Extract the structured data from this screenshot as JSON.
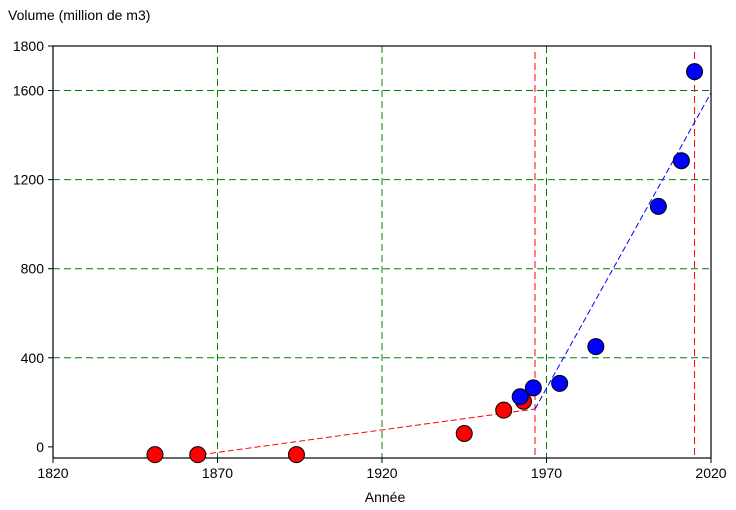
{
  "chart_data": {
    "type": "scatter",
    "title": "",
    "ylabel": "Volume (million de m3)",
    "xlabel": "Année",
    "xlim": [
      1820,
      2020
    ],
    "ylim": [
      -50,
      1800
    ],
    "x_ticks": [
      1820,
      1870,
      1920,
      1970,
      2020
    ],
    "y_ticks": [
      0,
      400,
      800,
      1200,
      1600,
      1800
    ],
    "grid_x": [
      1870,
      1920,
      1970
    ],
    "grid_y": [
      400,
      800,
      1200,
      1600
    ],
    "vlines": [
      {
        "x": 1966.5,
        "color": "#ff0000"
      },
      {
        "x": 2015,
        "color": "#ff0000"
      }
    ],
    "series": [
      {
        "color": "#ff0000",
        "points": [
          {
            "x": 1851,
            "y": -35
          },
          {
            "x": 1864,
            "y": -35
          },
          {
            "x": 1894,
            "y": -35
          },
          {
            "x": 1945,
            "y": 60
          },
          {
            "x": 1957,
            "y": 165
          },
          {
            "x": 1963,
            "y": 205
          }
        ]
      },
      {
        "color": "#0000ff",
        "points": [
          {
            "x": 1962,
            "y": 225
          },
          {
            "x": 1966,
            "y": 265
          },
          {
            "x": 1974,
            "y": 285
          },
          {
            "x": 1985,
            "y": 450
          },
          {
            "x": 2004,
            "y": 1080
          },
          {
            "x": 2011,
            "y": 1285
          },
          {
            "x": 2015,
            "y": 1685
          }
        ]
      }
    ],
    "trend_lines": [
      {
        "color": "#ff0000",
        "from": [
          1865,
          -35
        ],
        "to": [
          1966.5,
          170
        ]
      },
      {
        "color": "#0000ff",
        "from": [
          1966.5,
          170
        ],
        "to": [
          2020,
          1590
        ]
      }
    ]
  }
}
